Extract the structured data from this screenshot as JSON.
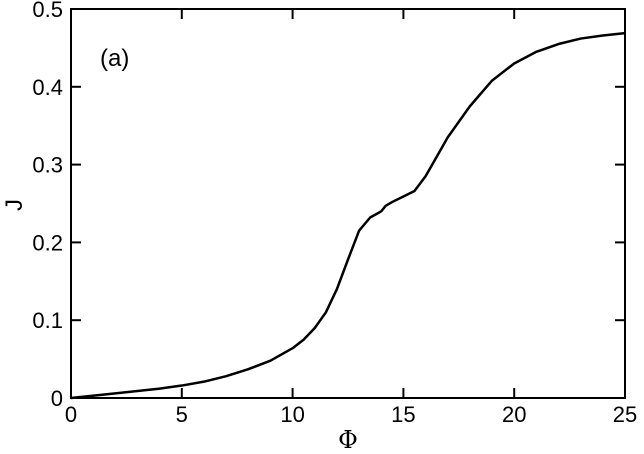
{
  "chart_data": {
    "type": "line",
    "annotation": "(a)",
    "xlabel": "Φ",
    "ylabel": "J",
    "x": [
      0,
      2,
      4,
      5,
      6,
      7,
      8,
      9,
      10,
      10.5,
      11,
      11.5,
      12,
      12.5,
      13,
      13.5,
      14,
      14.2,
      14.5,
      15,
      15.5,
      16,
      16.5,
      17,
      18,
      19,
      20,
      21,
      22,
      23,
      24,
      25
    ],
    "values": [
      0,
      0.006,
      0.012,
      0.016,
      0.021,
      0.028,
      0.037,
      0.048,
      0.064,
      0.075,
      0.09,
      0.11,
      0.14,
      0.178,
      0.215,
      0.232,
      0.24,
      0.247,
      0.252,
      0.259,
      0.266,
      0.285,
      0.31,
      0.335,
      0.375,
      0.408,
      0.43,
      0.445,
      0.455,
      0.462,
      0.466,
      0.469
    ],
    "color": "#000000",
    "xlim": [
      0,
      25
    ],
    "xticks": [
      0,
      5,
      10,
      15,
      20,
      25
    ],
    "ylim": [
      0,
      0.5
    ],
    "yticks": [
      0,
      0.1,
      0.2,
      0.3,
      0.4,
      0.5
    ]
  }
}
